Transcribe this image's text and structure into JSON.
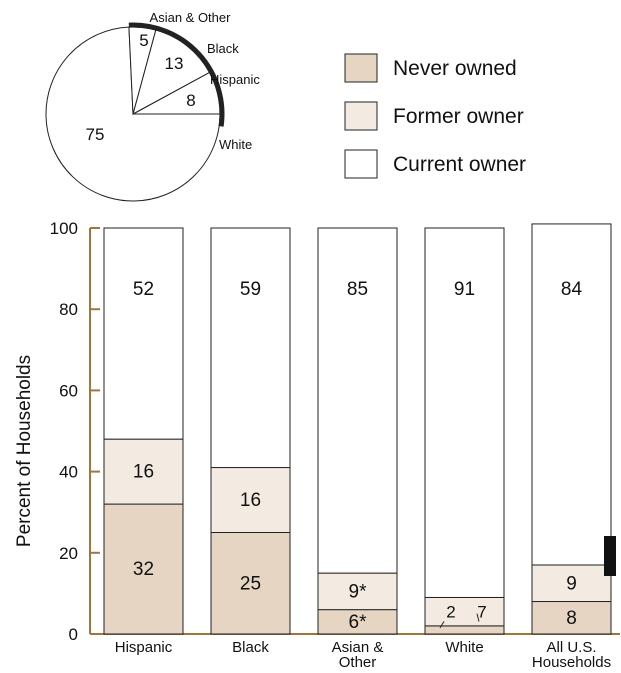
{
  "chart_data": [
    {
      "type": "pie",
      "slices": [
        {
          "label": "White",
          "value": 75,
          "text": "75"
        },
        {
          "label": "Hispanic",
          "value": 8,
          "text": "8"
        },
        {
          "label": "Black",
          "value": 13,
          "text": "13"
        },
        {
          "label": "Asian & Other",
          "value": 5,
          "text": "5"
        }
      ]
    },
    {
      "type": "bar",
      "stacked": true,
      "categories": [
        [
          "Hispanic"
        ],
        [
          "Black"
        ],
        [
          "Asian &",
          "Other"
        ],
        [
          "White"
        ],
        [
          "All U.S.",
          "Households"
        ]
      ],
      "series": [
        {
          "name": "Never owned",
          "values": [
            32,
            25,
            6,
            2,
            8
          ],
          "labels": [
            "32",
            "25",
            "6*",
            "2",
            "8"
          ]
        },
        {
          "name": "Former owner",
          "values": [
            16,
            16,
            9,
            7,
            9
          ],
          "labels": [
            "16",
            "16",
            "9*",
            "7",
            "9"
          ]
        },
        {
          "name": "Current owner",
          "values": [
            52,
            59,
            85,
            91,
            84
          ],
          "labels": [
            "52",
            "59",
            "85",
            "91",
            "84"
          ]
        }
      ],
      "ylabel": "Percent of Households",
      "ylim": [
        0,
        100
      ],
      "yticks": [
        0,
        20,
        40,
        60,
        80,
        100
      ],
      "legend_position": "top-right",
      "grid": false
    }
  ],
  "colors": {
    "never_owned": "#e6d5c3",
    "former_owner": "#f3ebe2",
    "current_owner": "#ffffff",
    "axis": "#a0763c",
    "pie_rim": "#222222"
  }
}
